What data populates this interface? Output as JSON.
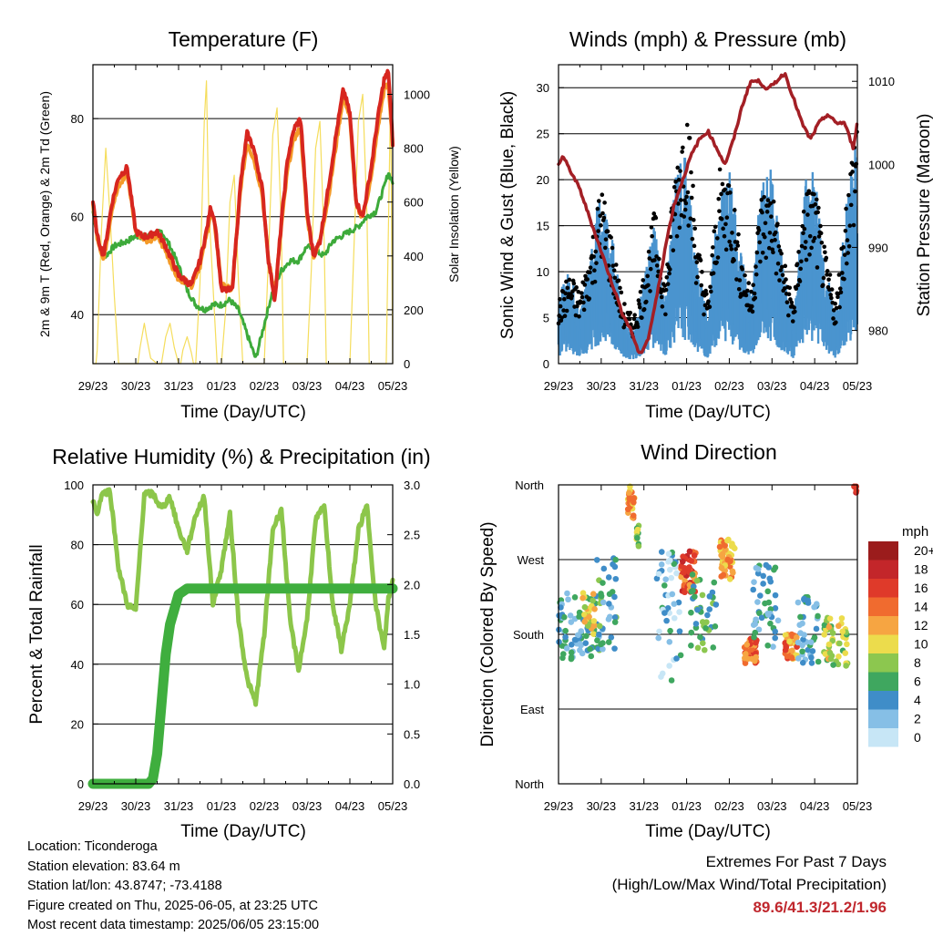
{
  "colors": {
    "temp_red": "#d7261f",
    "temp_orange": "#f49a28",
    "dewpoint_green": "#3daa3a",
    "solar_yellow": "#f5dd5c",
    "gust_black": "#000000",
    "wind_blue": "#4a94cf",
    "pressure_maroon": "#a31f25",
    "rh_lightgreen": "#8cc64a",
    "precip_green": "#3fae3e",
    "extremes_red": "#c0272d"
  },
  "panels": {
    "temperature": {
      "title": "Temperature (F)",
      "xlabel": "Time (Day/UTC)",
      "ylabel_left": "2m & 9m T (Red, Orange) & 2m Td (Green)",
      "ylabel_right": "Solar Insolation (Yellow)"
    },
    "wind": {
      "title": "Winds (mph) & Pressure (mb)",
      "xlabel": "Time (Day/UTC)",
      "ylabel_left": "Sonic Wind & Gust (Blue, Black)",
      "ylabel_right": "Station Pressure (Maroon)"
    },
    "rh": {
      "title": "Relative Humidity (%) & Precipitation (in)",
      "xlabel": "Time (Day/UTC)",
      "ylabel_left": "Percent & Total Rainfall"
    },
    "direction": {
      "title": "Wind Direction",
      "xlabel": "Time (Day/UTC)",
      "ylabel_left": "Direction (Colored By Speed)",
      "legend_title": "mph"
    }
  },
  "info": {
    "location": "Location: Ticonderoga",
    "elevation": "Station elevation: 83.64 m",
    "latlon": "Station lat/lon: 43.8747; -73.4188",
    "created": "Figure created on Thu, 2025-06-05, at 23:25 UTC",
    "recent": "Most recent data timestamp: 2025/06/05 23:15:00"
  },
  "extremes": {
    "title": "Extremes For Past 7 Days",
    "subtitle": "(High/Low/Max Wind/Total Precipitation)",
    "values": "89.6/41.3/21.2/1.96"
  },
  "chart_data": [
    {
      "type": "line",
      "x_ticks": [
        "29/23",
        "30/23",
        "31/23",
        "01/23",
        "02/23",
        "03/23",
        "04/23",
        "05/23"
      ],
      "xlim": [
        0,
        7
      ],
      "ylim": [
        30,
        91
      ],
      "y_ticks": [
        40,
        60,
        80
      ],
      "y2lim": [
        0,
        1110
      ],
      "y2_ticks": [
        0,
        200,
        400,
        600,
        800,
        1000
      ],
      "grid_y": [
        40,
        60,
        80
      ],
      "series": [
        {
          "role": "temp_9m",
          "color_key": "temp_orange",
          "x": [
            0,
            0.1,
            0.25,
            0.45,
            0.6,
            0.8,
            1,
            1.15,
            1.3,
            1.5,
            1.7,
            1.9,
            2,
            2.15,
            2.3,
            2.5,
            2.65,
            2.75,
            2.85,
            3,
            3.25,
            3.45,
            3.6,
            3.75,
            3.95,
            4.1,
            4.25,
            4.4,
            4.55,
            4.7,
            4.85,
            5,
            5.15,
            5.3,
            5.5,
            5.7,
            5.85,
            6,
            6.15,
            6.3,
            6.5,
            6.65,
            6.8,
            6.9,
            7
          ],
          "y": [
            62,
            56,
            51,
            62,
            66,
            69,
            57,
            56,
            55,
            56,
            53,
            49,
            47,
            47,
            46,
            50,
            56,
            61,
            58,
            46,
            45,
            66,
            75,
            72,
            65,
            51,
            44,
            58,
            70,
            76,
            78,
            60,
            52,
            55,
            64,
            76,
            85,
            80,
            62,
            60,
            68,
            78,
            86,
            87,
            75
          ]
        },
        {
          "role": "temp_2m",
          "color_key": "temp_red",
          "x": [
            0,
            0.1,
            0.25,
            0.45,
            0.6,
            0.8,
            1,
            1.15,
            1.3,
            1.5,
            1.7,
            1.9,
            2,
            2.15,
            2.3,
            2.5,
            2.65,
            2.75,
            2.85,
            3,
            3.25,
            3.45,
            3.6,
            3.75,
            3.95,
            4.1,
            4.25,
            4.4,
            4.55,
            4.7,
            4.85,
            5,
            5.15,
            5.3,
            5.5,
            5.7,
            5.85,
            6,
            6.15,
            6.3,
            6.5,
            6.65,
            6.8,
            6.9,
            7
          ],
          "y": [
            63,
            56,
            52,
            63,
            68,
            70,
            57,
            56,
            56,
            57,
            54,
            50,
            48,
            47,
            46,
            51,
            57,
            62,
            59,
            45,
            45,
            67,
            77,
            74,
            66,
            51,
            43,
            59,
            72,
            78,
            80,
            61,
            52,
            55,
            66,
            78,
            86,
            81,
            63,
            60,
            70,
            80,
            88,
            89.6,
            75
          ]
        },
        {
          "role": "dewpoint",
          "color_key": "dewpoint_green",
          "x": [
            0,
            0.15,
            0.3,
            0.5,
            0.8,
            1,
            1.3,
            1.6,
            1.8,
            2,
            2.2,
            2.4,
            2.6,
            2.8,
            3,
            3.2,
            3.4,
            3.6,
            3.8,
            4,
            4.2,
            4.4,
            4.6,
            4.8,
            5,
            5.2,
            5.4,
            5.6,
            5.8,
            6,
            6.2,
            6.4,
            6.6,
            6.8,
            6.9,
            7
          ],
          "y": [
            61,
            54,
            52,
            54,
            55,
            56,
            56,
            57,
            54,
            50,
            45,
            42,
            41,
            42,
            42,
            43,
            41,
            36,
            31,
            38,
            45,
            49,
            51,
            51,
            54,
            53,
            52,
            55,
            56,
            57,
            58,
            60,
            61,
            66,
            69,
            67
          ]
        },
        {
          "role": "solar",
          "color_key": "solar_yellow",
          "axis": "right",
          "x": [
            0,
            0.07,
            0.1,
            0.2,
            0.3,
            0.4,
            0.5,
            0.6,
            0.9,
            1.05,
            1.1,
            1.2,
            1.25,
            1.35,
            1.5,
            1.55,
            1.6,
            1.7,
            1.8,
            1.9,
            2.0,
            2.05,
            2.1,
            2.2,
            2.3,
            2.35,
            2.4,
            2.5,
            2.6,
            2.65,
            2.7,
            2.9,
            3.0,
            3.1,
            3.2,
            3.3,
            3.4,
            3.5,
            3.65,
            3.95,
            4.0,
            4.1,
            4.2,
            4.3,
            4.4,
            4.45,
            4.55,
            4.95,
            5.0,
            5.1,
            5.2,
            5.3,
            5.4,
            5.45,
            5.55,
            5.95,
            6.0,
            6.1,
            6.2,
            6.3,
            6.4,
            6.45,
            6.55,
            6.85,
            6.9,
            6.95,
            7
          ],
          "y": [
            0,
            0,
            50,
            500,
            800,
            550,
            250,
            0,
            0,
            0,
            60,
            150,
            100,
            20,
            0,
            0,
            0,
            100,
            150,
            60,
            0,
            0,
            50,
            100,
            40,
            0,
            0,
            300,
            900,
            1050,
            600,
            0,
            0,
            200,
            600,
            700,
            300,
            0,
            0,
            0,
            0,
            400,
            850,
            950,
            500,
            0,
            0,
            0,
            0,
            350,
            800,
            900,
            450,
            0,
            0,
            0,
            0,
            450,
            900,
            1000,
            550,
            0,
            0,
            0,
            500,
            1000,
            0
          ]
        }
      ]
    },
    {
      "type": "line",
      "x_ticks": [
        "29/23",
        "30/23",
        "31/23",
        "01/23",
        "02/23",
        "03/23",
        "04/23",
        "05/23"
      ],
      "xlim": [
        0,
        7
      ],
      "ylim": [
        0,
        32.5
      ],
      "y_ticks": [
        0,
        5,
        10,
        15,
        20,
        25,
        30
      ],
      "y2lim": [
        976,
        1012
      ],
      "y2_ticks": [
        980,
        990,
        1000,
        1010
      ],
      "grid_y": [
        5,
        10,
        15,
        20,
        25,
        30
      ],
      "series": [
        {
          "role": "wind_mean",
          "color_key": "wind_blue",
          "x": [
            0,
            0.25,
            0.5,
            0.75,
            1,
            1.25,
            1.5,
            1.75,
            2,
            2.25,
            2.5,
            2.75,
            3,
            3.25,
            3.5,
            3.75,
            4,
            4.25,
            4.5,
            4.75,
            5,
            5.25,
            5.5,
            5.75,
            6,
            6.25,
            6.5,
            6.75,
            7
          ],
          "y": [
            4,
            6,
            3,
            7,
            11,
            8,
            3,
            2,
            5,
            9,
            4,
            12,
            13,
            6,
            3,
            11,
            12,
            7,
            4,
            11,
            12,
            6,
            3,
            11,
            12,
            6,
            3,
            10,
            14
          ]
        },
        {
          "role": "wind_gust_peak",
          "color_key": "gust_black",
          "x": [
            0,
            0.25,
            0.5,
            0.75,
            1,
            1.25,
            1.5,
            1.75,
            2,
            2.25,
            2.5,
            2.75,
            3,
            3.25,
            3.5,
            3.75,
            4,
            4.25,
            4.5,
            4.75,
            5,
            5.25,
            5.5,
            5.75,
            6,
            6.25,
            6.5,
            6.75,
            7
          ],
          "y": [
            7,
            10,
            8,
            13,
            20,
            14,
            7,
            5,
            10,
            17,
            9,
            23,
            30,
            14,
            7,
            21,
            22,
            13,
            8,
            19,
            20,
            12,
            7,
            19,
            20,
            12,
            7,
            19,
            29
          ]
        },
        {
          "role": "pressure",
          "color_key": "pressure_maroon",
          "axis": "right",
          "x": [
            0,
            0.1,
            0.3,
            0.5,
            0.7,
            0.9,
            1.1,
            1.3,
            1.5,
            1.7,
            1.9,
            2.1,
            2.3,
            2.5,
            2.7,
            2.9,
            3.1,
            3.3,
            3.5,
            3.7,
            3.9,
            4.1,
            4.3,
            4.5,
            4.7,
            4.9,
            5.1,
            5.3,
            5.5,
            5.7,
            5.9,
            6.1,
            6.3,
            6.5,
            6.7,
            6.9,
            7
          ],
          "y": [
            1000,
            1001,
            999,
            997,
            994,
            991,
            988,
            985,
            982,
            980,
            977,
            979,
            984,
            990,
            995,
            998,
            1001,
            1003,
            1004,
            1002,
            1000,
            1003,
            1007,
            1010,
            1010,
            1009,
            1010,
            1011,
            1008,
            1005,
            1003,
            1005,
            1006,
            1005,
            1005,
            1002,
            1005
          ]
        }
      ]
    },
    {
      "type": "line",
      "x_ticks": [
        "29/23",
        "30/23",
        "31/23",
        "01/23",
        "02/23",
        "03/23",
        "04/23",
        "05/23"
      ],
      "xlim": [
        0,
        7
      ],
      "ylim": [
        0,
        100
      ],
      "y_ticks": [
        0,
        20,
        40,
        60,
        80,
        100
      ],
      "y2lim": [
        0,
        3.0
      ],
      "y2_ticks": [
        "0.0",
        "0.5",
        "1.0",
        "1.5",
        "2.0",
        "2.5",
        "3.0"
      ],
      "grid_y": [
        20,
        40,
        60,
        80
      ],
      "series": [
        {
          "role": "rh",
          "color_key": "rh_lightgreen",
          "x": [
            0,
            0.1,
            0.2,
            0.4,
            0.6,
            0.8,
            1,
            1.2,
            1.4,
            1.6,
            1.8,
            2,
            2.2,
            2.4,
            2.6,
            2.8,
            3,
            3.2,
            3.4,
            3.6,
            3.8,
            4,
            4.2,
            4.4,
            4.6,
            4.8,
            5,
            5.2,
            5.4,
            5.6,
            5.8,
            6,
            6.2,
            6.4,
            6.6,
            6.8,
            6.9,
            7
          ],
          "y": [
            95,
            90,
            97,
            98,
            72,
            60,
            58,
            97,
            97,
            92,
            96,
            85,
            78,
            90,
            96,
            60,
            72,
            90,
            55,
            35,
            27,
            50,
            85,
            92,
            55,
            38,
            55,
            88,
            93,
            60,
            45,
            60,
            85,
            93,
            60,
            45,
            62,
            68
          ]
        },
        {
          "role": "precip_total",
          "color_key": "precip_green",
          "axis": "right",
          "x": [
            0,
            1.0,
            1.3,
            1.4,
            1.5,
            1.6,
            1.7,
            1.8,
            1.9,
            2.0,
            2.2,
            3,
            4,
            5,
            6,
            7
          ],
          "y": [
            0,
            0,
            0,
            0.05,
            0.3,
            0.8,
            1.3,
            1.6,
            1.75,
            1.9,
            1.96,
            1.96,
            1.96,
            1.96,
            1.96,
            1.96
          ]
        }
      ]
    },
    {
      "type": "scatter",
      "x_ticks": [
        "29/23",
        "30/23",
        "31/23",
        "01/23",
        "02/23",
        "03/23",
        "04/23",
        "05/23"
      ],
      "xlim": [
        0,
        7
      ],
      "ylim": [
        0,
        360
      ],
      "y_tick_values": [
        0,
        90,
        180,
        270,
        360
      ],
      "y_tick_labels": [
        "North",
        "East",
        "South",
        "West",
        "North"
      ],
      "color_scale": {
        "labels": [
          "20+",
          "18",
          "16",
          "14",
          "12",
          "10",
          "8",
          "6",
          "4",
          "2",
          "0"
        ],
        "colors": [
          "#9b1c1c",
          "#c3262a",
          "#df3a2a",
          "#f06b2f",
          "#f6a542",
          "#ecdc4c",
          "#8cc74f",
          "#3fa75f",
          "#3f8dc8",
          "#86bfe6",
          "#c7e6f6"
        ]
      },
      "clusters": [
        {
          "day": 0.45,
          "dir": 190,
          "spread_t": 0.45,
          "spread_d": 40,
          "speed": 4,
          "n": 70
        },
        {
          "day": 0.7,
          "dir": 205,
          "spread_t": 0.15,
          "spread_d": 25,
          "speed": 10,
          "n": 25
        },
        {
          "day": 1.15,
          "dir": 215,
          "spread_t": 0.25,
          "spread_d": 60,
          "speed": 5,
          "n": 40
        },
        {
          "day": 1.7,
          "dir": 340,
          "spread_t": 0.08,
          "spread_d": 20,
          "speed": 12,
          "n": 25
        },
        {
          "day": 1.85,
          "dir": 300,
          "spread_t": 0.05,
          "spread_d": 15,
          "speed": 8,
          "n": 10
        },
        {
          "day": 2.6,
          "dir": 200,
          "spread_t": 0.3,
          "spread_d": 80,
          "speed": 3,
          "n": 45
        },
        {
          "day": 3.05,
          "dir": 255,
          "spread_t": 0.18,
          "spread_d": 25,
          "speed": 15,
          "n": 55
        },
        {
          "day": 3.4,
          "dir": 210,
          "spread_t": 0.3,
          "spread_d": 50,
          "speed": 6,
          "n": 40
        },
        {
          "day": 3.95,
          "dir": 270,
          "spread_t": 0.18,
          "spread_d": 25,
          "speed": 12,
          "n": 50
        },
        {
          "day": 4.5,
          "dir": 160,
          "spread_t": 0.15,
          "spread_d": 15,
          "speed": 14,
          "n": 45
        },
        {
          "day": 4.85,
          "dir": 215,
          "spread_t": 0.3,
          "spread_d": 55,
          "speed": 4,
          "n": 45
        },
        {
          "day": 5.45,
          "dir": 165,
          "spread_t": 0.15,
          "spread_d": 15,
          "speed": 13,
          "n": 45
        },
        {
          "day": 5.85,
          "dir": 185,
          "spread_t": 0.25,
          "spread_d": 40,
          "speed": 4,
          "n": 40
        },
        {
          "day": 6.5,
          "dir": 170,
          "spread_t": 0.3,
          "spread_d": 30,
          "speed": 9,
          "n": 50
        },
        {
          "day": 6.95,
          "dir": 355,
          "spread_t": 0.03,
          "spread_d": 6,
          "speed": 18,
          "n": 6
        }
      ]
    }
  ]
}
